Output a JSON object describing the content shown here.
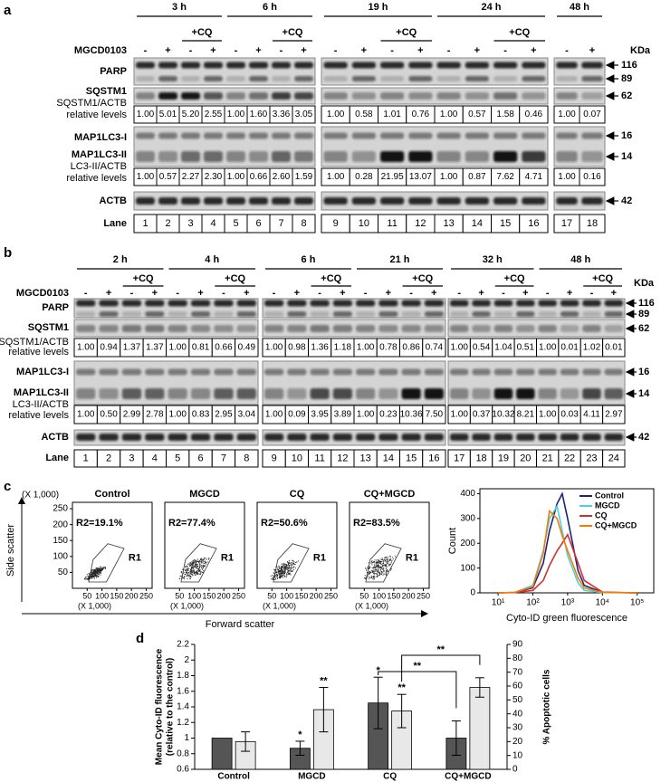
{
  "panel_a": {
    "label": "a",
    "times": [
      "3 h",
      "6 h",
      "19 h",
      "24 h",
      "48 h"
    ],
    "cq_label": "+CQ",
    "treatment_label": "MGCD0103",
    "signs": [
      "-",
      "+",
      "-",
      "+",
      "-",
      "+",
      "-",
      "+",
      "-",
      "+",
      "-",
      "+",
      "-",
      "+",
      "-",
      "+",
      "-",
      "+"
    ],
    "kda_label": "KDa",
    "rows": {
      "parp": "PARP",
      "sqstm1": "SQSTM1",
      "sqstm1_ratio": [
        "SQSTM1/ACTB",
        "relative levels"
      ],
      "lc3_i": "MAP1LC3-I",
      "lc3_ii": "MAP1LC3-II",
      "lc3_ratio": [
        "LC3-II/ACTB",
        "relative levels"
      ],
      "actb": "ACTB",
      "lane": "Lane"
    },
    "markers": [
      116,
      89,
      62,
      16,
      14,
      42
    ],
    "sqstm1_levels": [
      "1.00",
      "5.01",
      "5.20",
      "2.55",
      "1.00",
      "1.60",
      "3.36",
      "3.05",
      "1.00",
      "0.58",
      "1.01",
      "0.76",
      "1.00",
      "0.57",
      "1.58",
      "0.46",
      "1.00",
      "0.07"
    ],
    "lc3_levels": [
      "1.00",
      "0.57",
      "2.27",
      "2.30",
      "1.00",
      "0.66",
      "2.60",
      "1.59",
      "1.00",
      "0.28",
      "21.95",
      "13.07",
      "1.00",
      "0.87",
      "7.62",
      "4.71",
      "1.00",
      "0.16"
    ],
    "lanes": [
      1,
      2,
      3,
      4,
      5,
      6,
      7,
      8,
      9,
      10,
      11,
      12,
      13,
      14,
      15,
      16,
      17,
      18
    ]
  },
  "panel_b": {
    "label": "b",
    "times": [
      "2 h",
      "4 h",
      "6 h",
      "21 h",
      "32 h",
      "48 h"
    ],
    "cq_label": "+CQ",
    "treatment_label": "MGCD0103",
    "signs": [
      "-",
      "+",
      "-",
      "+",
      "-",
      "+",
      "-",
      "+",
      "-",
      "+",
      "-",
      "+",
      "-",
      "+",
      "-",
      "+",
      "-",
      "+",
      "-",
      "+",
      "-",
      "+",
      "-",
      "+"
    ],
    "kda_label": "KDa",
    "rows": {
      "parp": "PARP",
      "sqstm1": "SQSTM1",
      "sqstm1_ratio": [
        "SQSTM1/ACTB",
        "relative levels"
      ],
      "lc3_i": "MAP1LC3-I",
      "lc3_ii": "MAP1LC3-II",
      "lc3_ratio": [
        "LC3-II/ACTB",
        "relative levels"
      ],
      "actb": "ACTB",
      "lane": "Lane"
    },
    "markers": [
      116,
      89,
      62,
      16,
      14,
      42
    ],
    "sqstm1_levels": [
      "1.00",
      "0.94",
      "1.37",
      "1.37",
      "1.00",
      "0.81",
      "0.66",
      "0.49",
      "1.00",
      "0.98",
      "1.36",
      "1.18",
      "1.00",
      "0.78",
      "0.86",
      "0.74",
      "1.00",
      "0.54",
      "1.04",
      "0.51",
      "1.00",
      "0.01",
      "1.02",
      "0.01"
    ],
    "lc3_levels": [
      "1.00",
      "0.50",
      "2.99",
      "2.78",
      "1.00",
      "0.83",
      "2.95",
      "3.04",
      "1.00",
      "0.09",
      "3.95",
      "3.89",
      "1.00",
      "0.23",
      "10.36",
      "7.50",
      "1.00",
      "0.37",
      "10.32",
      "8.21",
      "1.00",
      "0.03",
      "4.11",
      "2.97"
    ],
    "lanes": [
      1,
      2,
      3,
      4,
      5,
      6,
      7,
      8,
      9,
      10,
      11,
      12,
      13,
      14,
      15,
      16,
      17,
      18,
      19,
      20,
      21,
      22,
      23,
      24
    ]
  },
  "panel_c": {
    "label": "c",
    "scatter": {
      "unit_label": "(X 1,000)",
      "xlim": [
        0,
        270
      ],
      "ylim": [
        0,
        270
      ],
      "xticks": [
        50,
        100,
        150,
        200,
        250
      ],
      "yticks": [
        50,
        100,
        150,
        200,
        250
      ],
      "plots": [
        {
          "title": "Control",
          "gate": "R2=19.1%"
        },
        {
          "title": "MGCD",
          "gate": "R2=77.4%"
        },
        {
          "title": "CQ",
          "gate": "R2=50.6%"
        },
        {
          "title": "CQ+MGCD",
          "gate": "R2=83.5%"
        }
      ],
      "region": "R1",
      "y_label": "Side scatter",
      "x_label": "Forward scatter"
    },
    "histogram": {
      "type": "line",
      "xscale": "log",
      "xlim": [
        3,
        300000
      ],
      "xticks": [
        {
          "value": 10,
          "label": "10¹"
        },
        {
          "value": 100,
          "label": "10²"
        },
        {
          "value": 1000,
          "label": "10³"
        },
        {
          "value": 10000,
          "label": "10⁴"
        },
        {
          "value": 100000,
          "label": "10⁵"
        }
      ],
      "ylim": [
        0,
        420
      ],
      "yticks": [
        0,
        100,
        200,
        300,
        400
      ],
      "y_label": "Count",
      "x_label": "Cyto-ID green fluorescence",
      "x": [
        10,
        30,
        100,
        200,
        300,
        500,
        700,
        1000,
        2000,
        3000,
        10000,
        100000
      ],
      "series": [
        {
          "name": "Control",
          "color": "#1a237e",
          "values": [
            0,
            2,
            20,
            120,
            250,
            360,
            400,
            300,
            90,
            30,
            2,
            0
          ]
        },
        {
          "name": "MGCD",
          "color": "#4dd0e1",
          "values": [
            0,
            2,
            30,
            170,
            300,
            350,
            250,
            150,
            40,
            10,
            1,
            0
          ]
        },
        {
          "name": "CQ",
          "color": "#d32f2f",
          "values": [
            0,
            1,
            10,
            50,
            110,
            170,
            200,
            235,
            120,
            50,
            3,
            0
          ]
        },
        {
          "name": "CQ+MGCD",
          "color": "#f57c00",
          "values": [
            0,
            2,
            25,
            160,
            330,
            300,
            230,
            170,
            60,
            20,
            2,
            0
          ]
        }
      ]
    }
  },
  "panel_d": {
    "label": "d",
    "type": "bar",
    "categories": [
      "Control",
      "MGCD",
      "CQ",
      "CQ+MGCD"
    ],
    "ylim": [
      0.6,
      2.2
    ],
    "yticks": [
      0.6,
      0.8,
      1,
      1.2,
      1.4,
      1.6,
      1.8,
      2,
      2.2
    ],
    "y2lim": [
      0,
      90
    ],
    "y2ticks": [
      0,
      10,
      20,
      30,
      40,
      50,
      60,
      70,
      80,
      90
    ],
    "y_label": [
      "Mean Cyto-ID fluorescence",
      "(relative to the control)"
    ],
    "y2_label": "% Apoptotic cells",
    "series": [
      {
        "color": "#555555",
        "values": [
          1,
          0.87,
          1.45,
          1
        ],
        "errors": [
          null,
          0.09,
          0.33,
          0.22
        ],
        "stars": [
          null,
          "*",
          "*",
          null
        ]
      },
      {
        "color": "#e8e8e8",
        "axis": "y2",
        "values": [
          20,
          43,
          42,
          59
        ],
        "errors": [
          7,
          16,
          12,
          7
        ],
        "stars": [
          null,
          "**",
          "**",
          null
        ]
      }
    ],
    "comparisons": [
      "**",
      "**"
    ]
  }
}
